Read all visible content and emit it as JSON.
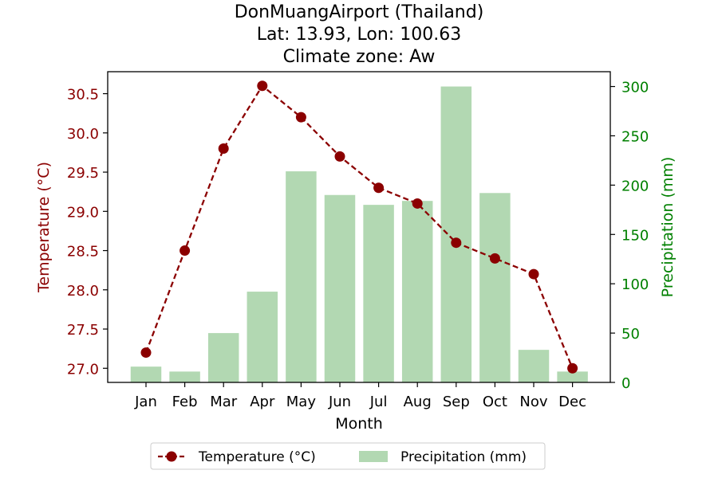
{
  "chart_data": {
    "type": "bar+line",
    "title_lines": [
      "DonMuangAirport (Thailand)",
      "Lat: 13.93, Lon: 100.63",
      "Climate zone: Aw"
    ],
    "categories": [
      "Jan",
      "Feb",
      "Mar",
      "Apr",
      "May",
      "Jun",
      "Jul",
      "Aug",
      "Sep",
      "Oct",
      "Nov",
      "Dec"
    ],
    "xlabel": "Month",
    "temperature": {
      "name": "Temperature (°C)",
      "axis_label": "Temperature (°C)",
      "values": [
        27.2,
        28.5,
        29.8,
        30.6,
        30.2,
        29.7,
        29.3,
        29.1,
        28.6,
        28.4,
        28.2,
        27.0
      ],
      "ylim": [
        26.82,
        30.78
      ],
      "ticks": [
        27.0,
        27.5,
        28.0,
        28.5,
        29.0,
        29.5,
        30.0,
        30.5
      ],
      "tick_labels": [
        "27.0",
        "27.5",
        "28.0",
        "28.5",
        "29.0",
        "29.5",
        "30.0",
        "30.5"
      ],
      "color": "#8b0000",
      "style": "dashed line with circle markers"
    },
    "precipitation": {
      "name": "Precipitation (mm)",
      "axis_label": "Precipitation (mm)",
      "values": [
        16,
        11,
        50,
        92,
        214,
        190,
        180,
        184,
        300,
        192,
        33,
        11
      ],
      "ylim": [
        0,
        315
      ],
      "ticks": [
        0,
        50,
        100,
        150,
        200,
        250,
        300
      ],
      "tick_labels": [
        "0",
        "50",
        "100",
        "150",
        "200",
        "250",
        "300"
      ],
      "bar_color": "#b2d8b2",
      "axis_color": "#008000"
    },
    "legend_position": "bottom-center",
    "grid": false
  }
}
